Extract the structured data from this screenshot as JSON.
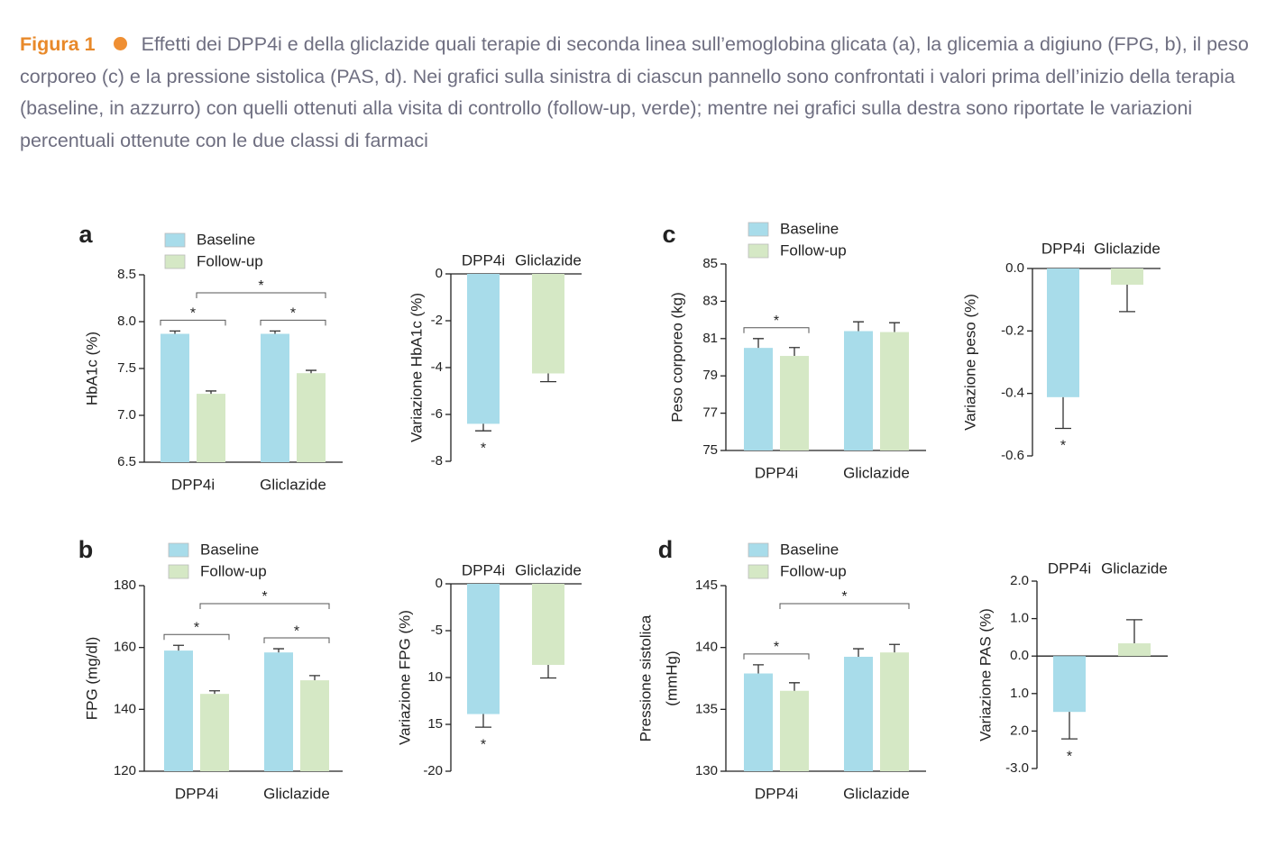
{
  "caption": {
    "label": "Figura 1",
    "text": "Effetti dei DPP4i e della gliclazide quali terapie di seconda linea sull’emoglobina glicata (a), la glicemia a digiuno (FPG, b), il peso corporeo (c) e la pressione sistolica (PAS, d). Nei grafici sulla sinistra di ciascun pannello sono confrontati i valori prima dell’inizio della terapia (baseline, in azzurro) con quelli ottenuti alla visita di controllo (follow-up, verde); mentre nei grafici sulla destra sono riportate le variazioni percentuali ottenute con le due classi di farmaci"
  },
  "chart_data": [
    {
      "type": "bar",
      "panel": "a",
      "ylabel": "HbA1c (%)",
      "categories": [
        "DPP4i",
        "Gliclazide"
      ],
      "series": [
        {
          "name": "Baseline",
          "color": "#a8dcea",
          "values": [
            7.87,
            7.87
          ],
          "errors": [
            0.03,
            0.03
          ]
        },
        {
          "name": "Follow-up",
          "color": "#d5e8c5",
          "values": [
            7.23,
            7.45
          ],
          "errors": [
            0.03,
            0.03
          ]
        }
      ],
      "ylim": [
        6.5,
        8.5
      ],
      "yticks": [
        6.5,
        {
          "value": 7,
          "label": "7.0"
        },
        7.5,
        {
          "value": 8,
          "label": "8.0"
        },
        8.5
      ],
      "significance": [
        {
          "label": "*",
          "from": [
            0,
            0
          ],
          "to": [
            1,
            0
          ]
        },
        {
          "label": "*",
          "from": [
            0,
            1
          ],
          "to": [
            1,
            1
          ]
        },
        {
          "label": "*",
          "from": [
            1,
            0
          ],
          "to": [
            1,
            1
          ]
        }
      ]
    },
    {
      "type": "bar",
      "ylabel": "Variazione HbA1c (%)",
      "categories": [
        "DPP4i",
        "Gliclazide"
      ],
      "series": [
        {
          "colors": [
            "#a8dcea",
            "#d5e8c5"
          ],
          "values": [
            -6.4,
            -4.25
          ],
          "errors": [
            0.3,
            0.35
          ]
        }
      ],
      "ylim": [
        -8,
        0
      ],
      "yticks": [
        0,
        -2,
        -4,
        -6,
        -8
      ],
      "significance": [
        {
          "label": "*",
          "category": 0
        }
      ]
    },
    {
      "type": "bar",
      "panel": "b",
      "ylabel": "FPG (mg/dl)",
      "categories": [
        "DPP4i",
        "Gliclazide"
      ],
      "series": [
        {
          "name": "Baseline",
          "color": "#a8dcea",
          "values": [
            159,
            158.4
          ],
          "errors": [
            1.7,
            1.2
          ]
        },
        {
          "name": "Follow-up",
          "color": "#d5e8c5",
          "values": [
            145,
            149.4
          ],
          "errors": [
            1,
            1.5
          ]
        }
      ],
      "ylim": [
        120,
        180
      ],
      "yticks": [
        120,
        140,
        160,
        180
      ],
      "significance": [
        {
          "label": "*",
          "from": [
            0,
            0
          ],
          "to": [
            1,
            0
          ]
        },
        {
          "label": "*",
          "from": [
            0,
            1
          ],
          "to": [
            1,
            1
          ]
        },
        {
          "label": "*",
          "from": [
            1,
            0
          ],
          "to": [
            1,
            1
          ]
        }
      ]
    },
    {
      "type": "bar",
      "ylabel": "Variazione FPG (%)",
      "categories": [
        "DPP4i",
        "Gliclazide"
      ],
      "series": [
        {
          "colors": [
            "#a8dcea",
            "#d5e8c5"
          ],
          "values": [
            -13.9,
            -8.65
          ],
          "errors": [
            1.4,
            1.4
          ]
        }
      ],
      "ylim": [
        -20,
        0
      ],
      "yticks": [
        0,
        {
          "value": -5,
          "label": "-5"
        },
        {
          "value": -10,
          "label": "10"
        },
        {
          "value": -15,
          "label": "15"
        },
        -20
      ],
      "significance": [
        {
          "label": "*",
          "category": 0
        }
      ]
    },
    {
      "type": "bar",
      "panel": "c",
      "ylabel": "Peso corporeo (kg)",
      "categories": [
        "DPP4i",
        "Gliclazide"
      ],
      "series": [
        {
          "name": "Baseline",
          "color": "#a8dcea",
          "values": [
            80.5,
            81.4
          ],
          "errors": [
            0.5,
            0.5
          ]
        },
        {
          "name": "Follow-up",
          "color": "#d5e8c5",
          "values": [
            80.07,
            81.35
          ],
          "errors": [
            0.45,
            0.5
          ]
        }
      ],
      "ylim": [
        75,
        85
      ],
      "yticks": [
        75,
        77,
        79,
        81,
        83,
        85
      ],
      "significance": [
        {
          "label": "*",
          "from": [
            0,
            0
          ],
          "to": [
            1,
            0
          ]
        }
      ]
    },
    {
      "type": "bar",
      "ylabel": "Variazione peso (%)",
      "categories": [
        "DPP4i",
        "Gliclazide"
      ],
      "series": [
        {
          "colors": [
            "#a8dcea",
            "#d5e8c5"
          ],
          "values": [
            -0.412,
            -0.052
          ],
          "errors": [
            0.1,
            0.086
          ]
        }
      ],
      "ylim": [
        -0.6,
        0
      ],
      "yticks": [
        {
          "value": 0,
          "label": "0.0"
        },
        -0.2,
        -0.4,
        -0.6
      ],
      "significance": [
        {
          "label": "*",
          "category": 0
        }
      ]
    },
    {
      "type": "bar",
      "panel": "d",
      "ylabel": [
        "Pressione sistolica",
        "(mmHg)"
      ],
      "categories": [
        "DPP4i",
        "Gliclazide"
      ],
      "series": [
        {
          "name": "Baseline",
          "color": "#a8dcea",
          "values": [
            137.9,
            139.25
          ],
          "errors": [
            0.7,
            0.65
          ]
        },
        {
          "name": "Follow-up",
          "color": "#d5e8c5",
          "values": [
            136.5,
            139.6
          ],
          "errors": [
            0.65,
            0.65
          ]
        }
      ],
      "ylim": [
        130,
        145
      ],
      "yticks": [
        130,
        135,
        140,
        145
      ],
      "significance": [
        {
          "label": "*",
          "from": [
            0,
            0
          ],
          "to": [
            1,
            0
          ]
        },
        {
          "label": "*",
          "from": [
            1,
            0
          ],
          "to": [
            1,
            1
          ]
        }
      ]
    },
    {
      "type": "bar",
      "ylabel": "Variazione PAS (%)",
      "categories": [
        "DPP4i",
        "Gliclazide"
      ],
      "series": [
        {
          "colors": [
            "#a8dcea",
            "#d5e8c5"
          ],
          "values": [
            -1.49,
            0.34
          ],
          "errors": [
            0.72,
            0.63
          ]
        }
      ],
      "ylim": [
        -3,
        2
      ],
      "yticks": [
        {
          "value": 2,
          "label": "2.0"
        },
        {
          "value": 1,
          "label": "1.0"
        },
        {
          "value": 0,
          "label": "0.0"
        },
        {
          "value": -1,
          "label": "1.0"
        },
        {
          "value": -2,
          "label": "2.0"
        },
        {
          "value": -3,
          "label": "-3.0"
        }
      ],
      "significance": [
        {
          "label": "*",
          "category": 0
        }
      ]
    }
  ]
}
